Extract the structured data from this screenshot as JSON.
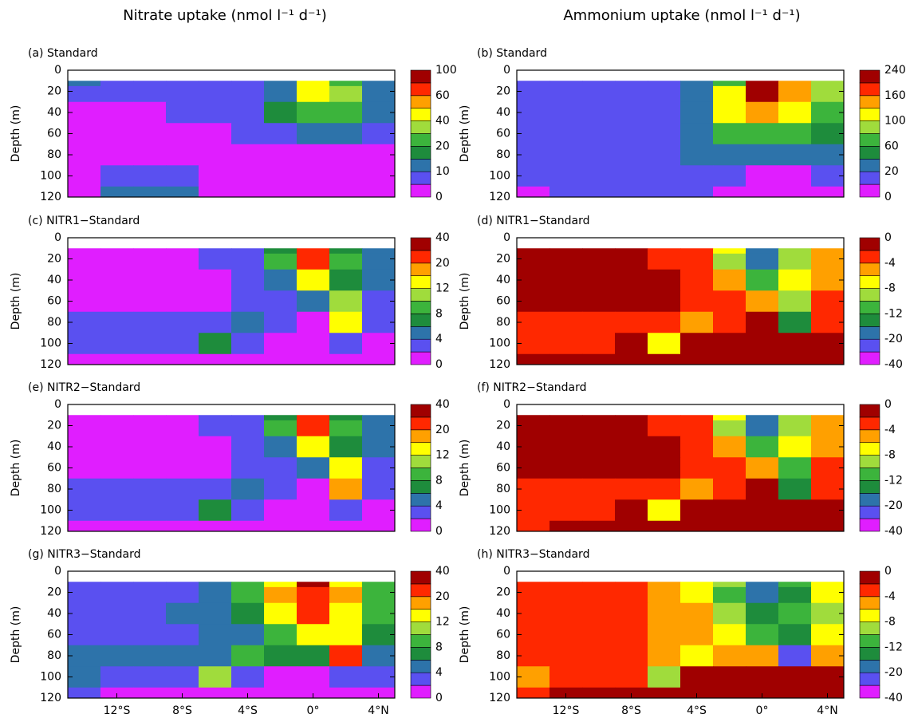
{
  "headers": [
    "Nitrate uptake (nmol l⁻¹ d⁻¹)",
    "Ammonium uptake (nmol l⁻¹ d⁻¹)"
  ],
  "chart_data": [
    {
      "type": "contour",
      "title": "(a) Standard",
      "ylabel": "Depth (m)",
      "xlim": [
        -15,
        5
      ],
      "ylim": [
        120,
        0
      ],
      "yticks": [
        0,
        20,
        40,
        60,
        80,
        100,
        120
      ],
      "colorbar_ticks": [
        0,
        10,
        20,
        40,
        60,
        100
      ],
      "colors": [
        "#e01eff",
        "#5a50f0",
        "#2d73aa",
        "#1e8c3c",
        "#3cb43c",
        "#a0dc3c",
        "#ffff00",
        "#ffa000",
        "#ff2800",
        "#a00000"
      ],
      "x": [
        -14,
        -12,
        -10,
        -8,
        -6,
        -4,
        -2,
        0,
        2,
        4
      ],
      "y": [
        10,
        20,
        40,
        60,
        80,
        100,
        120
      ],
      "values": [
        [
          12,
          8,
          8,
          8,
          8,
          8,
          10,
          40,
          25,
          12
        ],
        [
          8,
          8,
          8,
          8,
          8,
          8,
          12,
          40,
          30,
          12
        ],
        [
          3,
          3,
          3,
          5,
          6,
          8,
          15,
          20,
          20,
          12
        ],
        [
          2,
          2,
          2,
          2,
          3,
          5,
          8,
          10,
          10,
          8
        ],
        [
          1,
          1,
          1,
          1,
          1,
          2,
          3,
          3,
          3,
          3
        ],
        [
          2,
          8,
          8,
          8,
          2,
          1,
          1,
          1,
          1,
          1
        ],
        [
          1,
          12,
          12,
          12,
          2,
          1,
          1,
          1,
          1,
          1
        ]
      ]
    },
    {
      "type": "contour",
      "title": "(b) Standard",
      "ylabel": "Depth (m)",
      "xlim": [
        -15,
        5
      ],
      "ylim": [
        120,
        0
      ],
      "yticks": [
        0,
        20,
        40,
        60,
        80,
        100,
        120
      ],
      "colorbar_ticks": [
        0,
        20,
        60,
        100,
        160,
        240
      ],
      "colors": [
        "#e01eff",
        "#5a50f0",
        "#2d73aa",
        "#1e8c3c",
        "#3cb43c",
        "#a0dc3c",
        "#ffff00",
        "#ffa000",
        "#ff2800",
        "#a00000"
      ],
      "x": [
        -14,
        -12,
        -10,
        -8,
        -6,
        -4,
        -2,
        0,
        2,
        4
      ],
      "y": [
        10,
        20,
        40,
        60,
        80,
        100,
        120
      ],
      "values": [
        [
          15,
          15,
          15,
          15,
          15,
          25,
          60,
          220,
          140,
          90
        ],
        [
          15,
          15,
          15,
          15,
          15,
          25,
          120,
          200,
          150,
          90
        ],
        [
          15,
          15,
          15,
          15,
          15,
          25,
          110,
          140,
          110,
          70
        ],
        [
          15,
          15,
          15,
          15,
          15,
          25,
          60,
          70,
          60,
          45
        ],
        [
          15,
          15,
          15,
          15,
          15,
          25,
          30,
          30,
          30,
          25
        ],
        [
          15,
          15,
          15,
          15,
          15,
          15,
          12,
          8,
          8,
          10
        ],
        [
          8,
          15,
          15,
          15,
          15,
          15,
          5,
          3,
          3,
          5
        ]
      ]
    },
    {
      "type": "contour",
      "title": "(c) NITR1−Standard",
      "ylabel": "Depth (m)",
      "xlim": [
        -15,
        5
      ],
      "ylim": [
        120,
        0
      ],
      "yticks": [
        0,
        20,
        40,
        60,
        80,
        100,
        120
      ],
      "colorbar_ticks": [
        0,
        4,
        8,
        12,
        20,
        40
      ],
      "colors": [
        "#e01eff",
        "#5a50f0",
        "#2d73aa",
        "#1e8c3c",
        "#3cb43c",
        "#a0dc3c",
        "#ffff00",
        "#ffa000",
        "#ff2800",
        "#a00000"
      ],
      "x": [
        -14,
        -12,
        -10,
        -8,
        -6,
        -4,
        -2,
        0,
        2,
        4
      ],
      "y": [
        10,
        20,
        40,
        60,
        80,
        100,
        120
      ],
      "values": [
        [
          1,
          1,
          1,
          1,
          3,
          3,
          6,
          25,
          7,
          5
        ],
        [
          1,
          1,
          1,
          1,
          3,
          3,
          8,
          20,
          8,
          5
        ],
        [
          1,
          1,
          1,
          1,
          1,
          3,
          5,
          12,
          6,
          4
        ],
        [
          1,
          1,
          1,
          1,
          1,
          3,
          3,
          4,
          10,
          3
        ],
        [
          3,
          3,
          3,
          3,
          3,
          4,
          3,
          1,
          14,
          3
        ],
        [
          3,
          3,
          3,
          3,
          6,
          2,
          1,
          1,
          2,
          1
        ],
        [
          1,
          1,
          1,
          1,
          1,
          1,
          1,
          1,
          1,
          1
        ]
      ]
    },
    {
      "type": "contour",
      "title": "(d) NITR1−Standard",
      "ylabel": "Depth (m)",
      "xlim": [
        -15,
        5
      ],
      "ylim": [
        120,
        0
      ],
      "yticks": [
        0,
        20,
        40,
        60,
        80,
        100,
        120
      ],
      "colorbar_ticks": [
        -40,
        -20,
        -12,
        -8,
        -4,
        0
      ],
      "colors": [
        "#e01eff",
        "#5a50f0",
        "#2d73aa",
        "#1e8c3c",
        "#3cb43c",
        "#a0dc3c",
        "#ffff00",
        "#ffa000",
        "#ff2800",
        "#a00000"
      ],
      "x": [
        -14,
        -12,
        -10,
        -8,
        -6,
        -4,
        -2,
        0,
        2,
        4
      ],
      "y": [
        10,
        20,
        40,
        60,
        80,
        100,
        120
      ],
      "values": [
        [
          -1,
          -1,
          -1,
          -1,
          -3,
          -3,
          -8,
          -20,
          -10,
          -5
        ],
        [
          -1,
          -1,
          -1,
          -1,
          -3,
          -3,
          -10,
          -18,
          -10,
          -5
        ],
        [
          -1,
          -1,
          -1,
          -1,
          -1,
          -3,
          -6,
          -12,
          -8,
          -5
        ],
        [
          -1,
          -1,
          -1,
          -1,
          -1,
          -3,
          -3,
          -5,
          -10,
          -3
        ],
        [
          -3,
          -3,
          -3,
          -3,
          -3,
          -5,
          -3,
          -1,
          -14,
          -3
        ],
        [
          -3,
          -3,
          -3,
          -2,
          -7,
          -2,
          -1,
          -1,
          -2,
          -1
        ],
        [
          -1,
          -1,
          -1,
          -1,
          -1,
          -1,
          -1,
          -1,
          -1,
          -1
        ]
      ]
    },
    {
      "type": "contour",
      "title": "(e) NITR2−Standard",
      "ylabel": "Depth (m)",
      "xlim": [
        -15,
        5
      ],
      "ylim": [
        120,
        0
      ],
      "yticks": [
        0,
        20,
        40,
        60,
        80,
        100,
        120
      ],
      "colorbar_ticks": [
        0,
        4,
        8,
        12,
        20,
        40
      ],
      "colors": [
        "#e01eff",
        "#5a50f0",
        "#2d73aa",
        "#1e8c3c",
        "#3cb43c",
        "#a0dc3c",
        "#ffff00",
        "#ffa000",
        "#ff2800",
        "#a00000"
      ],
      "x": [
        -14,
        -12,
        -10,
        -8,
        -6,
        -4,
        -2,
        0,
        2,
        4
      ],
      "y": [
        10,
        20,
        40,
        60,
        80,
        100,
        120
      ],
      "values": [
        [
          1,
          1,
          1,
          1,
          3,
          3,
          6,
          25,
          7,
          5
        ],
        [
          1,
          1,
          1,
          1,
          3,
          3,
          8,
          20,
          8,
          5
        ],
        [
          1,
          1,
          1,
          1,
          1,
          3,
          5,
          12,
          6,
          4
        ],
        [
          1,
          1,
          1,
          1,
          1,
          3,
          3,
          4,
          12,
          3
        ],
        [
          3,
          3,
          3,
          3,
          3,
          5,
          3,
          1,
          18,
          3
        ],
        [
          3,
          3,
          3,
          2,
          7,
          2,
          1,
          1,
          2,
          1
        ],
        [
          1,
          1,
          1,
          1,
          1,
          1,
          1,
          1,
          1,
          1
        ]
      ]
    },
    {
      "type": "contour",
      "title": "(f) NITR2−Standard",
      "ylabel": "Depth (m)",
      "xlim": [
        -15,
        5
      ],
      "ylim": [
        120,
        0
      ],
      "yticks": [
        0,
        20,
        40,
        60,
        80,
        100,
        120
      ],
      "colorbar_ticks": [
        -40,
        -20,
        -12,
        -8,
        -4,
        0
      ],
      "colors": [
        "#e01eff",
        "#5a50f0",
        "#2d73aa",
        "#1e8c3c",
        "#3cb43c",
        "#a0dc3c",
        "#ffff00",
        "#ffa000",
        "#ff2800",
        "#a00000"
      ],
      "x": [
        -14,
        -12,
        -10,
        -8,
        -6,
        -4,
        -2,
        0,
        2,
        4
      ],
      "y": [
        10,
        20,
        40,
        60,
        80,
        100,
        120
      ],
      "values": [
        [
          -1,
          -1,
          -1,
          -1,
          -3,
          -3,
          -8,
          -20,
          -10,
          -5
        ],
        [
          -1,
          -1,
          -1,
          -1,
          -3,
          -3,
          -10,
          -18,
          -10,
          -5
        ],
        [
          -1,
          -1,
          -1,
          -1,
          -1,
          -3,
          -6,
          -12,
          -8,
          -5
        ],
        [
          -1,
          -1,
          -1,
          -1,
          -1,
          -3,
          -3,
          -5,
          -11,
          -3
        ],
        [
          -3,
          -3,
          -3,
          -3,
          -3,
          -5,
          -3,
          -1,
          -15,
          -3
        ],
        [
          -3,
          -3,
          -3,
          -2,
          -7,
          -2,
          -1,
          -1,
          -2,
          -1
        ],
        [
          -3,
          -1,
          -1,
          -1,
          -1,
          -1,
          -1,
          -1,
          -1,
          -1
        ]
      ]
    },
    {
      "type": "contour",
      "title": "(g) NITR3−Standard",
      "ylabel": "Depth (m)",
      "xlim": [
        -15,
        5
      ],
      "ylim": [
        120,
        0
      ],
      "yticks": [
        0,
        20,
        40,
        60,
        80,
        100,
        120
      ],
      "xticks": [
        {
          "value": -12,
          "label": "12°S"
        },
        {
          "value": -8,
          "label": "8°S"
        },
        {
          "value": -4,
          "label": "4°S"
        },
        {
          "value": 0,
          "label": "0°"
        },
        {
          "value": 4,
          "label": "4°N"
        }
      ],
      "colorbar_ticks": [
        0,
        4,
        8,
        12,
        20,
        40
      ],
      "colors": [
        "#e01eff",
        "#5a50f0",
        "#2d73aa",
        "#1e8c3c",
        "#3cb43c",
        "#a0dc3c",
        "#ffff00",
        "#ffa000",
        "#ff2800",
        "#a00000"
      ],
      "x": [
        -14,
        -12,
        -10,
        -8,
        -6,
        -4,
        -2,
        0,
        2,
        4
      ],
      "y": [
        10,
        20,
        40,
        60,
        80,
        100,
        120
      ],
      "values": [
        [
          3,
          3,
          3,
          3,
          5,
          8,
          14,
          30,
          14,
          8
        ],
        [
          3,
          3,
          3,
          3,
          5,
          8,
          16,
          25,
          16,
          8
        ],
        [
          3,
          3,
          3,
          5,
          5,
          6,
          12,
          20,
          12,
          8
        ],
        [
          3,
          3,
          3,
          3,
          5,
          5,
          8,
          12,
          14,
          6
        ],
        [
          5,
          5,
          5,
          5,
          5,
          8,
          6,
          6,
          24,
          4
        ],
        [
          5,
          3,
          3,
          3,
          10,
          2,
          1,
          1,
          2,
          2
        ],
        [
          2,
          1,
          1,
          1,
          1,
          1,
          1,
          1,
          1,
          1
        ]
      ]
    },
    {
      "type": "contour",
      "title": "(h) NITR3−Standard",
      "ylabel": "Depth (m)",
      "xlim": [
        -15,
        5
      ],
      "ylim": [
        120,
        0
      ],
      "yticks": [
        0,
        20,
        40,
        60,
        80,
        100,
        120
      ],
      "xticks": [
        {
          "value": -12,
          "label": "12°S"
        },
        {
          "value": -8,
          "label": "8°S"
        },
        {
          "value": -4,
          "label": "4°S"
        },
        {
          "value": 0,
          "label": "0°"
        },
        {
          "value": 4,
          "label": "4°N"
        }
      ],
      "colorbar_ticks": [
        -40,
        -20,
        -12,
        -8,
        -4,
        0
      ],
      "colors": [
        "#e01eff",
        "#5a50f0",
        "#2d73aa",
        "#1e8c3c",
        "#3cb43c",
        "#a0dc3c",
        "#ffff00",
        "#ffa000",
        "#ff2800",
        "#a00000"
      ],
      "x": [
        -14,
        -12,
        -10,
        -8,
        -6,
        -4,
        -2,
        0,
        2,
        4
      ],
      "y": [
        10,
        20,
        40,
        60,
        80,
        100,
        120
      ],
      "values": [
        [
          -3,
          -3,
          -3,
          -3,
          -5,
          -7,
          -10,
          -18,
          -12,
          -8
        ],
        [
          -3,
          -3,
          -3,
          -3,
          -5,
          -7,
          -12,
          -18,
          -14,
          -8
        ],
        [
          -3,
          -3,
          -3,
          -3,
          -5,
          -6,
          -10,
          -16,
          -12,
          -9
        ],
        [
          -3,
          -3,
          -3,
          -3,
          -5,
          -5,
          -8,
          -12,
          -14,
          -8
        ],
        [
          -3,
          -3,
          -3,
          -3,
          -5,
          -8,
          -6,
          -6,
          -22,
          -5
        ],
        [
          -5,
          -3,
          -3,
          -3,
          -10,
          -2,
          -1,
          -1,
          -2,
          -2
        ],
        [
          -3,
          -1,
          -1,
          -1,
          -1,
          -1,
          -1,
          -1,
          -1,
          -1
        ]
      ]
    }
  ]
}
